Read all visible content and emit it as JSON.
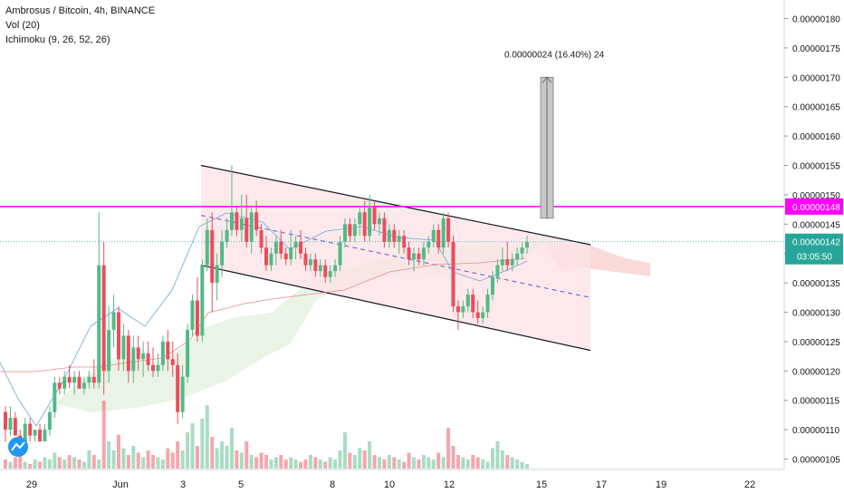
{
  "header": {
    "title": "Ambrosus / Bitcoin, 4h, BINANCE",
    "indicator_volume": "Vol (20)",
    "indicator_ichimoku": "Ichimoku (9, 26, 52, 26)"
  },
  "colors": {
    "up": "#53b987",
    "down": "#eb4d5c",
    "resistance": "#ff00ff",
    "price_line": "#26a69a",
    "channel_fill": "#fde4e6",
    "cloud_green": "#e8f3e3",
    "cloud_red": "#fbdada",
    "projection": "#c9c9c9"
  },
  "chart_data": {
    "type": "candlestick",
    "title": "Ambrosus / Bitcoin, 4h, BINANCE",
    "y_axis": {
      "range": [
        1.04e-06,
        1.81e-06
      ],
      "ticks": [
        "0.00000105",
        "0.00000110",
        "0.00000115",
        "0.00000120",
        "0.00000125",
        "0.00000130",
        "0.00000135",
        "0.00000140",
        "0.00000145",
        "0.00000150",
        "0.00000155",
        "0.00000160",
        "0.00000165",
        "0.00000170",
        "0.00000175",
        "0.00000180"
      ]
    },
    "x_axis": {
      "ticks": [
        "29",
        "Jun",
        "3",
        "5",
        "8",
        "10",
        "12",
        "15",
        "17",
        "19",
        "22"
      ]
    },
    "price_labels": {
      "resistance": "0.00000148",
      "last": "0.00000142",
      "countdown": "03:05:50"
    },
    "resistance_level": 1.48e-06,
    "last_price": 1.42e-06,
    "projection_label": "0.00000024 (16.40%) 24",
    "projection_from": 1.46e-06,
    "projection_to": 1.7e-06,
    "channel": {
      "upper": [
        [
          "Jun 3",
          1.55e-06
        ],
        [
          "Jun 16",
          1.415e-06
        ]
      ],
      "lower": [
        [
          "Jun 3",
          1.38e-06
        ],
        [
          "Jun 16",
          1.235e-06
        ]
      ]
    },
    "candles": [
      [
        1.13,
        1.14,
        1.08,
        1.1
      ],
      [
        1.1,
        1.14,
        1.09,
        1.12
      ],
      [
        1.12,
        1.13,
        1.09,
        1.09
      ],
      [
        1.09,
        1.1,
        1.07,
        1.08
      ],
      [
        1.08,
        1.12,
        1.07,
        1.11
      ],
      [
        1.11,
        1.12,
        1.08,
        1.09
      ],
      [
        1.09,
        1.1,
        1.08,
        1.1
      ],
      [
        1.1,
        1.11,
        1.08,
        1.08
      ],
      [
        1.08,
        1.11,
        1.08,
        1.1
      ],
      [
        1.1,
        1.14,
        1.09,
        1.13
      ],
      [
        1.13,
        1.19,
        1.12,
        1.18
      ],
      [
        1.18,
        1.19,
        1.16,
        1.17
      ],
      [
        1.17,
        1.2,
        1.16,
        1.19
      ],
      [
        1.19,
        1.21,
        1.17,
        1.18
      ],
      [
        1.18,
        1.2,
        1.16,
        1.19
      ],
      [
        1.19,
        1.2,
        1.17,
        1.17
      ],
      [
        1.17,
        1.19,
        1.16,
        1.18
      ],
      [
        1.18,
        1.2,
        1.17,
        1.19
      ],
      [
        1.19,
        1.22,
        1.17,
        1.18
      ],
      [
        1.18,
        1.47,
        1.17,
        1.38
      ],
      [
        1.38,
        1.42,
        1.16,
        1.2
      ],
      [
        1.2,
        1.31,
        1.18,
        1.27
      ],
      [
        1.27,
        1.33,
        1.24,
        1.3
      ],
      [
        1.3,
        1.31,
        1.2,
        1.22
      ],
      [
        1.22,
        1.28,
        1.2,
        1.26
      ],
      [
        1.26,
        1.27,
        1.18,
        1.2
      ],
      [
        1.2,
        1.26,
        1.18,
        1.24
      ],
      [
        1.24,
        1.26,
        1.2,
        1.22
      ],
      [
        1.22,
        1.25,
        1.19,
        1.23
      ],
      [
        1.23,
        1.25,
        1.2,
        1.21
      ],
      [
        1.21,
        1.24,
        1.19,
        1.2
      ],
      [
        1.2,
        1.23,
        1.19,
        1.21
      ],
      [
        1.21,
        1.26,
        1.2,
        1.25
      ],
      [
        1.25,
        1.27,
        1.2,
        1.22
      ],
      [
        1.22,
        1.25,
        1.19,
        1.21
      ],
      [
        1.21,
        1.23,
        1.11,
        1.13
      ],
      [
        1.13,
        1.21,
        1.12,
        1.19
      ],
      [
        1.19,
        1.28,
        1.18,
        1.27
      ],
      [
        1.27,
        1.33,
        1.26,
        1.32
      ],
      [
        1.32,
        1.36,
        1.25,
        1.26
      ],
      [
        1.26,
        1.39,
        1.25,
        1.38
      ],
      [
        1.38,
        1.46,
        1.37,
        1.44
      ],
      [
        1.44,
        1.47,
        1.3,
        1.35
      ],
      [
        1.35,
        1.4,
        1.32,
        1.38
      ],
      [
        1.38,
        1.44,
        1.36,
        1.42
      ],
      [
        1.42,
        1.46,
        1.41,
        1.44
      ],
      [
        1.44,
        1.55,
        1.43,
        1.47
      ],
      [
        1.47,
        1.48,
        1.43,
        1.44
      ],
      [
        1.44,
        1.5,
        1.42,
        1.46
      ],
      [
        1.46,
        1.5,
        1.41,
        1.42
      ],
      [
        1.42,
        1.48,
        1.4,
        1.47
      ],
      [
        1.47,
        1.49,
        1.43,
        1.44
      ],
      [
        1.44,
        1.45,
        1.4,
        1.41
      ],
      [
        1.41,
        1.43,
        1.37,
        1.38
      ],
      [
        1.38,
        1.41,
        1.37,
        1.4
      ],
      [
        1.4,
        1.43,
        1.38,
        1.42
      ],
      [
        1.42,
        1.44,
        1.39,
        1.4
      ],
      [
        1.4,
        1.41,
        1.38,
        1.39
      ],
      [
        1.39,
        1.44,
        1.38,
        1.41
      ],
      [
        1.41,
        1.43,
        1.39,
        1.42
      ],
      [
        1.42,
        1.44,
        1.39,
        1.4
      ],
      [
        1.4,
        1.41,
        1.37,
        1.38
      ],
      [
        1.38,
        1.4,
        1.37,
        1.39
      ],
      [
        1.39,
        1.4,
        1.36,
        1.37
      ],
      [
        1.37,
        1.39,
        1.36,
        1.38
      ],
      [
        1.38,
        1.39,
        1.35,
        1.36
      ],
      [
        1.36,
        1.38,
        1.35,
        1.37
      ],
      [
        1.37,
        1.39,
        1.36,
        1.38
      ],
      [
        1.38,
        1.43,
        1.37,
        1.42
      ],
      [
        1.42,
        1.46,
        1.41,
        1.45
      ],
      [
        1.45,
        1.46,
        1.42,
        1.43
      ],
      [
        1.43,
        1.46,
        1.42,
        1.45
      ],
      [
        1.45,
        1.48,
        1.43,
        1.47
      ],
      [
        1.47,
        1.49,
        1.42,
        1.43
      ],
      [
        1.43,
        1.5,
        1.42,
        1.48
      ],
      [
        1.48,
        1.49,
        1.44,
        1.45
      ],
      [
        1.45,
        1.47,
        1.43,
        1.46
      ],
      [
        1.46,
        1.47,
        1.41,
        1.42
      ],
      [
        1.42,
        1.45,
        1.41,
        1.44
      ],
      [
        1.44,
        1.45,
        1.41,
        1.42
      ],
      [
        1.42,
        1.44,
        1.4,
        1.43
      ],
      [
        1.43,
        1.44,
        1.4,
        1.41
      ],
      [
        1.41,
        1.42,
        1.38,
        1.39
      ],
      [
        1.39,
        1.41,
        1.37,
        1.4
      ],
      [
        1.4,
        1.41,
        1.38,
        1.39
      ],
      [
        1.39,
        1.42,
        1.38,
        1.41
      ],
      [
        1.41,
        1.43,
        1.4,
        1.42
      ],
      [
        1.42,
        1.45,
        1.41,
        1.44
      ],
      [
        1.44,
        1.45,
        1.4,
        1.41
      ],
      [
        1.41,
        1.47,
        1.4,
        1.46
      ],
      [
        1.46,
        1.47,
        1.41,
        1.42
      ],
      [
        1.42,
        1.43,
        1.3,
        1.31
      ],
      [
        1.31,
        1.32,
        1.27,
        1.3
      ],
      [
        1.3,
        1.32,
        1.29,
        1.31
      ],
      [
        1.31,
        1.34,
        1.3,
        1.33
      ],
      [
        1.33,
        1.34,
        1.29,
        1.3
      ],
      [
        1.3,
        1.32,
        1.28,
        1.29
      ],
      [
        1.29,
        1.31,
        1.28,
        1.3
      ],
      [
        1.3,
        1.34,
        1.29,
        1.33
      ],
      [
        1.33,
        1.37,
        1.32,
        1.36
      ],
      [
        1.36,
        1.39,
        1.35,
        1.38
      ],
      [
        1.38,
        1.41,
        1.37,
        1.39
      ],
      [
        1.39,
        1.42,
        1.37,
        1.38
      ],
      [
        1.38,
        1.4,
        1.37,
        1.39
      ],
      [
        1.39,
        1.41,
        1.38,
        1.4
      ],
      [
        1.4,
        1.42,
        1.39,
        1.41
      ],
      [
        1.41,
        1.43,
        1.4,
        1.42
      ]
    ],
    "volume": [
      4,
      3,
      5,
      6,
      3,
      2,
      4,
      3,
      5,
      4,
      7,
      5,
      4,
      6,
      5,
      4,
      3,
      8,
      6,
      4,
      30,
      12,
      8,
      15,
      9,
      6,
      10,
      7,
      5,
      8,
      6,
      5,
      4,
      9,
      7,
      12,
      8,
      16,
      20,
      10,
      22,
      28,
      14,
      9,
      12,
      10,
      18,
      8,
      7,
      12,
      6,
      5,
      7,
      6,
      4,
      5,
      6,
      4,
      5,
      4,
      3,
      4,
      6,
      5,
      4,
      3,
      5,
      4,
      8,
      16,
      7,
      6,
      9,
      8,
      12,
      6,
      5,
      4,
      6,
      5,
      4,
      3,
      7,
      5,
      4,
      6,
      5,
      4,
      7,
      5,
      18,
      10,
      6,
      5,
      4,
      6,
      5,
      4,
      3,
      9,
      12,
      8,
      6,
      5,
      4,
      3,
      2
    ]
  }
}
